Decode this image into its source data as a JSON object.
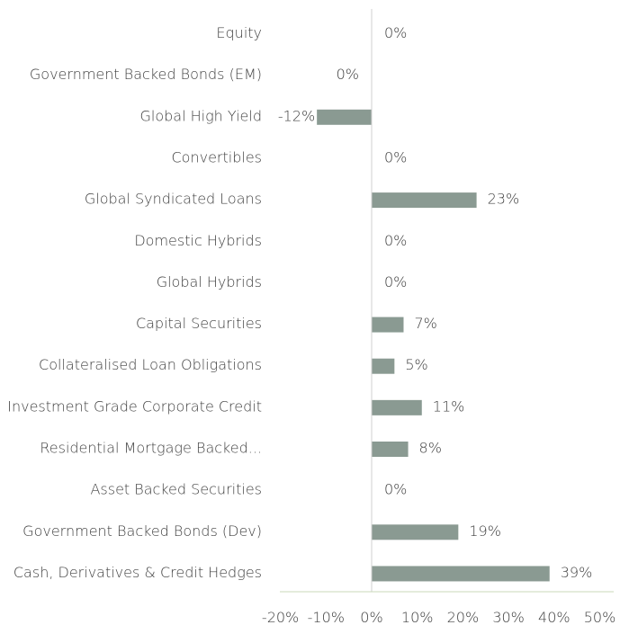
{
  "chart_data": {
    "type": "bar",
    "orientation": "horizontal",
    "categories": [
      "Equity",
      "Government Backed Bonds (EM)",
      "Global High Yield",
      "Convertibles",
      "Global Syndicated Loans",
      "Domestic Hybrids",
      "Global Hybrids",
      "Capital Securities",
      "Collateralised Loan Obligations",
      "Investment Grade Corporate Credit",
      "Residential Mortgage Backed...",
      "Asset Backed Securities",
      "Government Backed Bonds (Dev)",
      "Cash, Derivatives & Credit Hedges"
    ],
    "values": [
      0,
      0,
      -12,
      0,
      23,
      0,
      0,
      7,
      5,
      11,
      8,
      0,
      19,
      39
    ],
    "value_labels": [
      "0%",
      "0%",
      "-12%",
      "0%",
      "23%",
      "0%",
      "0%",
      "7%",
      "5%",
      "11%",
      "8%",
      "0%",
      "19%",
      "39%"
    ],
    "xlim": [
      -20,
      50
    ],
    "x_ticks": [
      -20,
      -10,
      0,
      10,
      20,
      30,
      40,
      50
    ],
    "x_tick_labels": [
      "-20%",
      "-10%",
      "0%",
      "10%",
      "20%",
      "30%",
      "40%",
      "50%"
    ],
    "title": "",
    "xlabel": "",
    "ylabel": "",
    "grid": false,
    "legend": "none",
    "colors": {
      "bar": "#8a9a92",
      "zero_line": "#d0d0d0",
      "axis_line": "#c9d8b8",
      "text": "#404040"
    }
  }
}
